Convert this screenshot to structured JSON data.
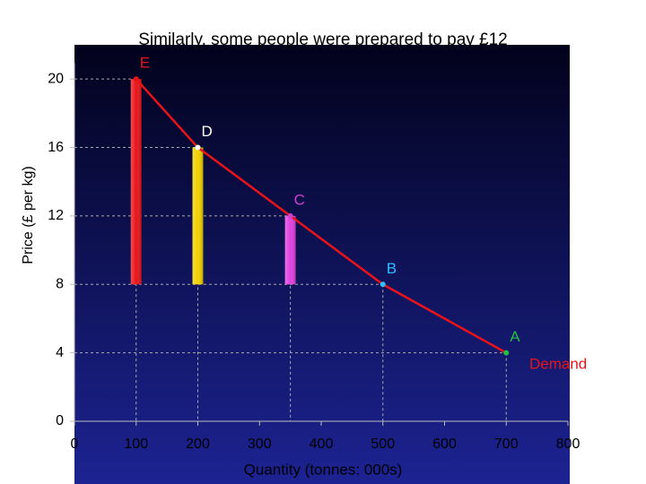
{
  "chart_data": {
    "type": "line",
    "title": "Similarly, some people were prepared to pay £12",
    "xlabel": "Quantity (tonnes: 000s)",
    "ylabel": "Price (£ per kg)",
    "x": [
      100,
      200,
      350,
      500,
      700
    ],
    "series": [
      {
        "name": "Demand",
        "color": "#e8141a",
        "values": [
          20,
          16,
          12,
          8,
          4
        ]
      }
    ],
    "point_labels": [
      "E",
      "D",
      "C",
      "B",
      "A"
    ],
    "point_colors": [
      "#e8141a",
      "#ffffff",
      "#d040d0",
      "#30c0ff",
      "#20c040"
    ],
    "bars": {
      "x": [
        100,
        200,
        350
      ],
      "values": [
        20,
        16,
        12
      ],
      "colors": [
        "#e8141a",
        "#f0d000",
        "#e040e0"
      ]
    },
    "xlim": [
      0,
      800
    ],
    "ylim": [
      0,
      22
    ],
    "xticks": [
      0,
      100,
      200,
      300,
      400,
      500,
      600,
      700,
      800
    ],
    "yticks": [
      0,
      4,
      8,
      12,
      16,
      20
    ]
  }
}
